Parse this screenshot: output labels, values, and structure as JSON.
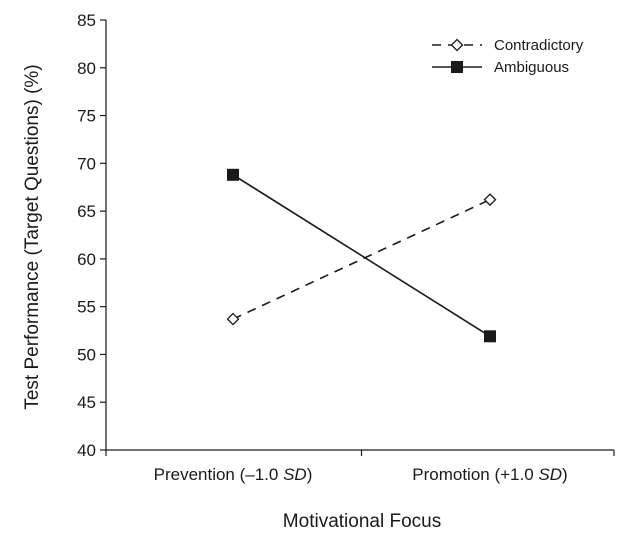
{
  "chart_data": {
    "type": "line",
    "categories": [
      "Prevention (–1.0 SD)",
      "Promotion (+1.0 SD)"
    ],
    "category_labels": [
      {
        "text": "Prevention (–1.0 ",
        "sd": "SD",
        "close": ")"
      },
      {
        "text": "Promotion (+1.0 ",
        "sd": "SD",
        "close": ")"
      }
    ],
    "series": [
      {
        "name": "Contradictory",
        "values": [
          53.7,
          66.2
        ],
        "line_style": "dashed",
        "marker": "open-diamond",
        "color": "#1a1a1a"
      },
      {
        "name": "Ambiguous",
        "values": [
          68.8,
          51.9
        ],
        "line_style": "solid",
        "marker": "filled-square",
        "color": "#1a1a1a"
      }
    ],
    "title": "",
    "xlabel": "Motivational Focus",
    "ylabel": "Test Performance (Target Questions) (%)",
    "ylim": [
      40,
      85
    ],
    "yticks": [
      "40",
      "45",
      "50",
      "55",
      "60",
      "65",
      "70",
      "75",
      "80",
      "85"
    ],
    "grid": false,
    "legend_position": "top-right"
  }
}
